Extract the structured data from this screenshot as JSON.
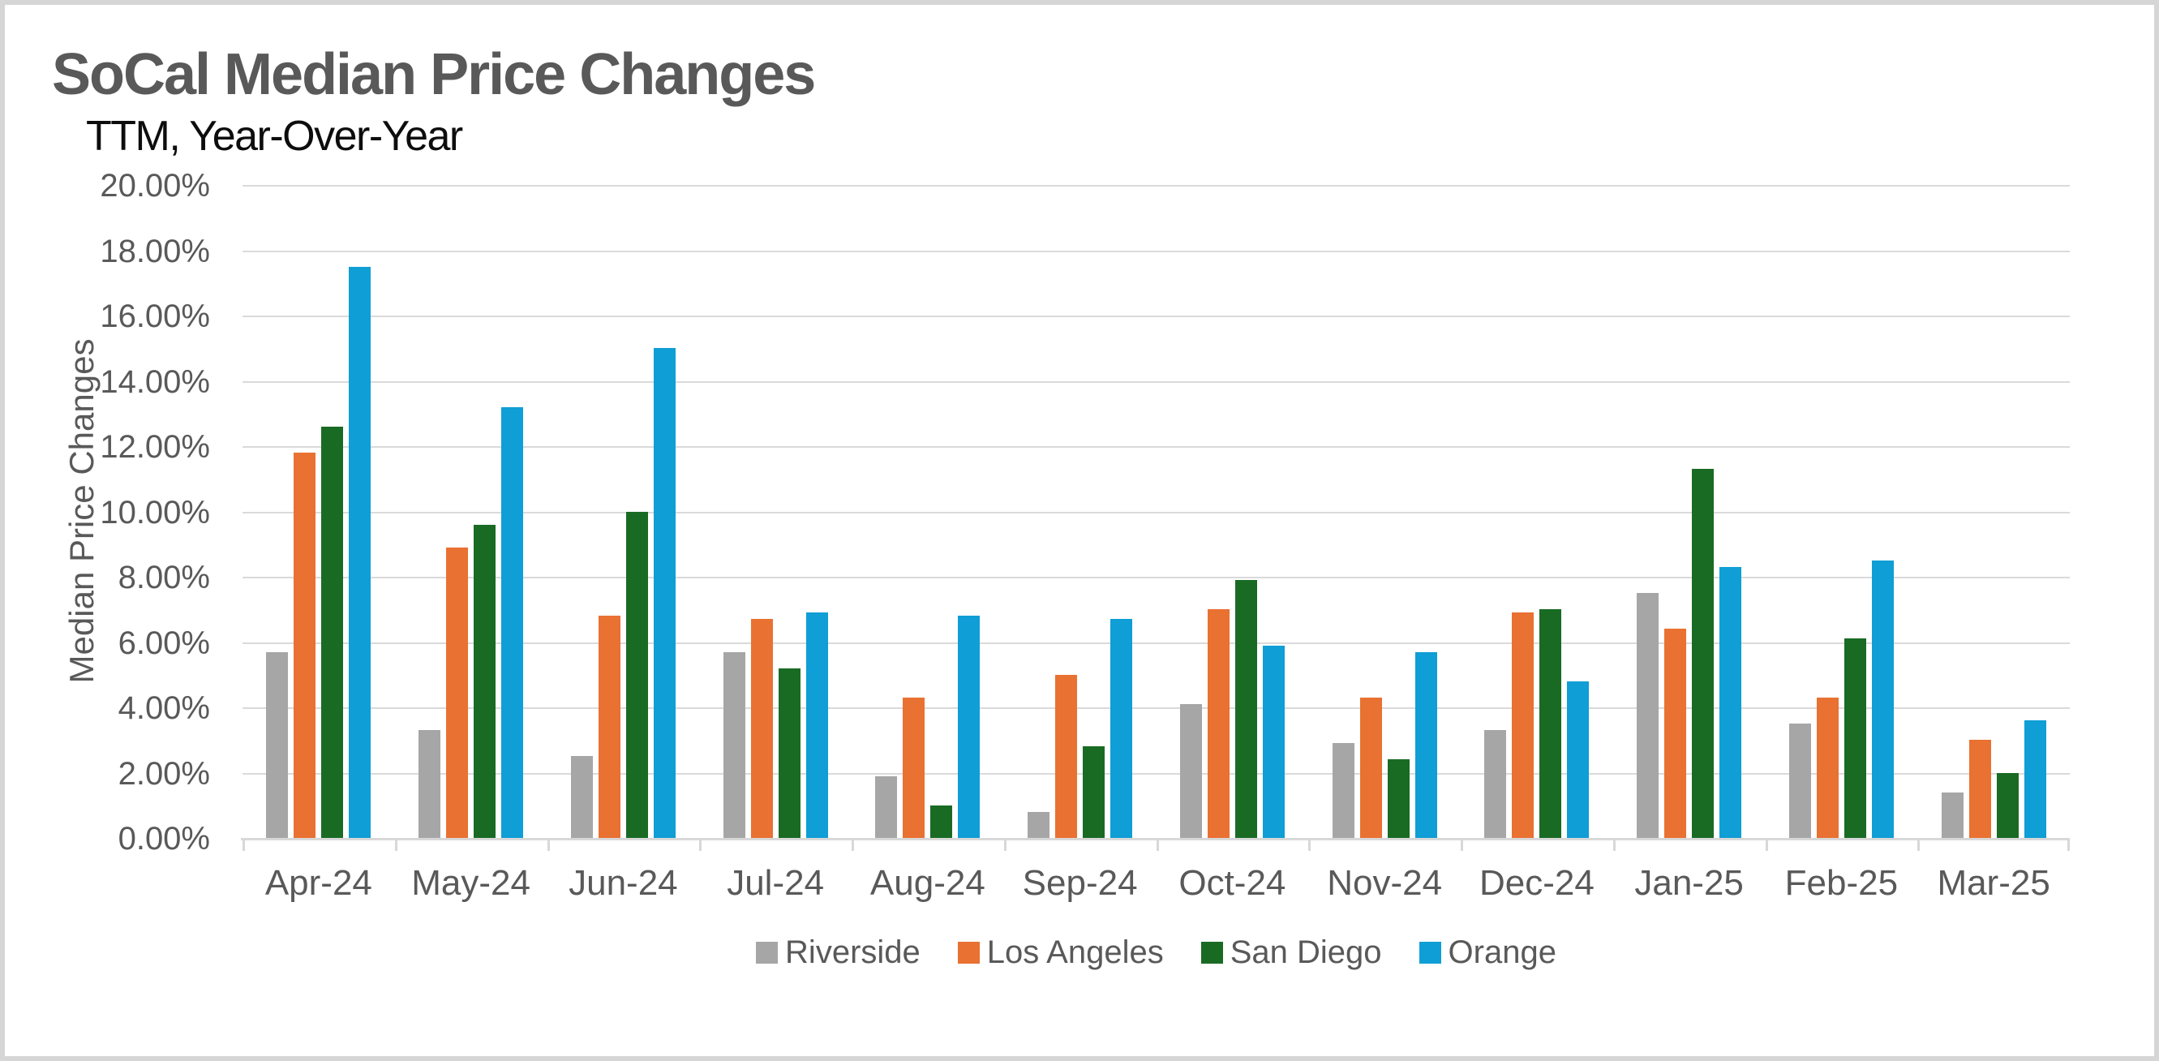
{
  "window": {
    "background": "#ffffff",
    "frame_color": "#d6d6d6"
  },
  "chart": {
    "title": "SoCal Median Price Changes",
    "subtitle": "TTM, Year-Over-Year",
    "y_axis_title": "Median Price Changes"
  },
  "chart_data": {
    "type": "bar",
    "title": "SoCal Median Price Changes",
    "subtitle": "TTM, Year-Over-Year",
    "xlabel": "",
    "ylabel": "Median Price Changes",
    "ylim": [
      0,
      20
    ],
    "y_tick_step": 2,
    "y_tick_labels": [
      "0.00%",
      "2.00%",
      "4.00%",
      "6.00%",
      "8.00%",
      "10.00%",
      "12.00%",
      "14.00%",
      "16.00%",
      "18.00%",
      "20.00%"
    ],
    "grid": "horizontal",
    "legend_position": "bottom",
    "categories": [
      "Apr-24",
      "May-24",
      "Jun-24",
      "Jul-24",
      "Aug-24",
      "Sep-24",
      "Oct-24",
      "Nov-24",
      "Dec-24",
      "Jan-25",
      "Feb-25",
      "Mar-25"
    ],
    "series": [
      {
        "name": "Riverside",
        "color": "#A6A6A6",
        "values": [
          5.7,
          3.3,
          2.5,
          5.7,
          1.9,
          0.8,
          4.1,
          2.9,
          3.3,
          7.5,
          3.5,
          1.4
        ]
      },
      {
        "name": "Los Angeles",
        "color": "#E97132",
        "values": [
          11.8,
          8.9,
          6.8,
          6.7,
          4.3,
          5.0,
          7.0,
          4.3,
          6.9,
          6.4,
          4.3,
          3.0
        ]
      },
      {
        "name": "San Diego",
        "color": "#196B24",
        "values": [
          12.6,
          9.6,
          10.0,
          5.2,
          1.0,
          2.8,
          7.9,
          2.4,
          7.0,
          11.3,
          6.1,
          2.0
        ]
      },
      {
        "name": "Orange",
        "color": "#0F9ED5",
        "values": [
          17.5,
          13.2,
          15.0,
          6.9,
          6.8,
          6.7,
          5.9,
          5.7,
          4.8,
          8.3,
          8.5,
          3.6
        ]
      }
    ],
    "style_colors": {
      "grid": "#DADADA",
      "axis": "#D8D8D8",
      "tick_text": "#595959",
      "title_text": "#595959",
      "subtitle_text": "#0D0D0D"
    }
  }
}
